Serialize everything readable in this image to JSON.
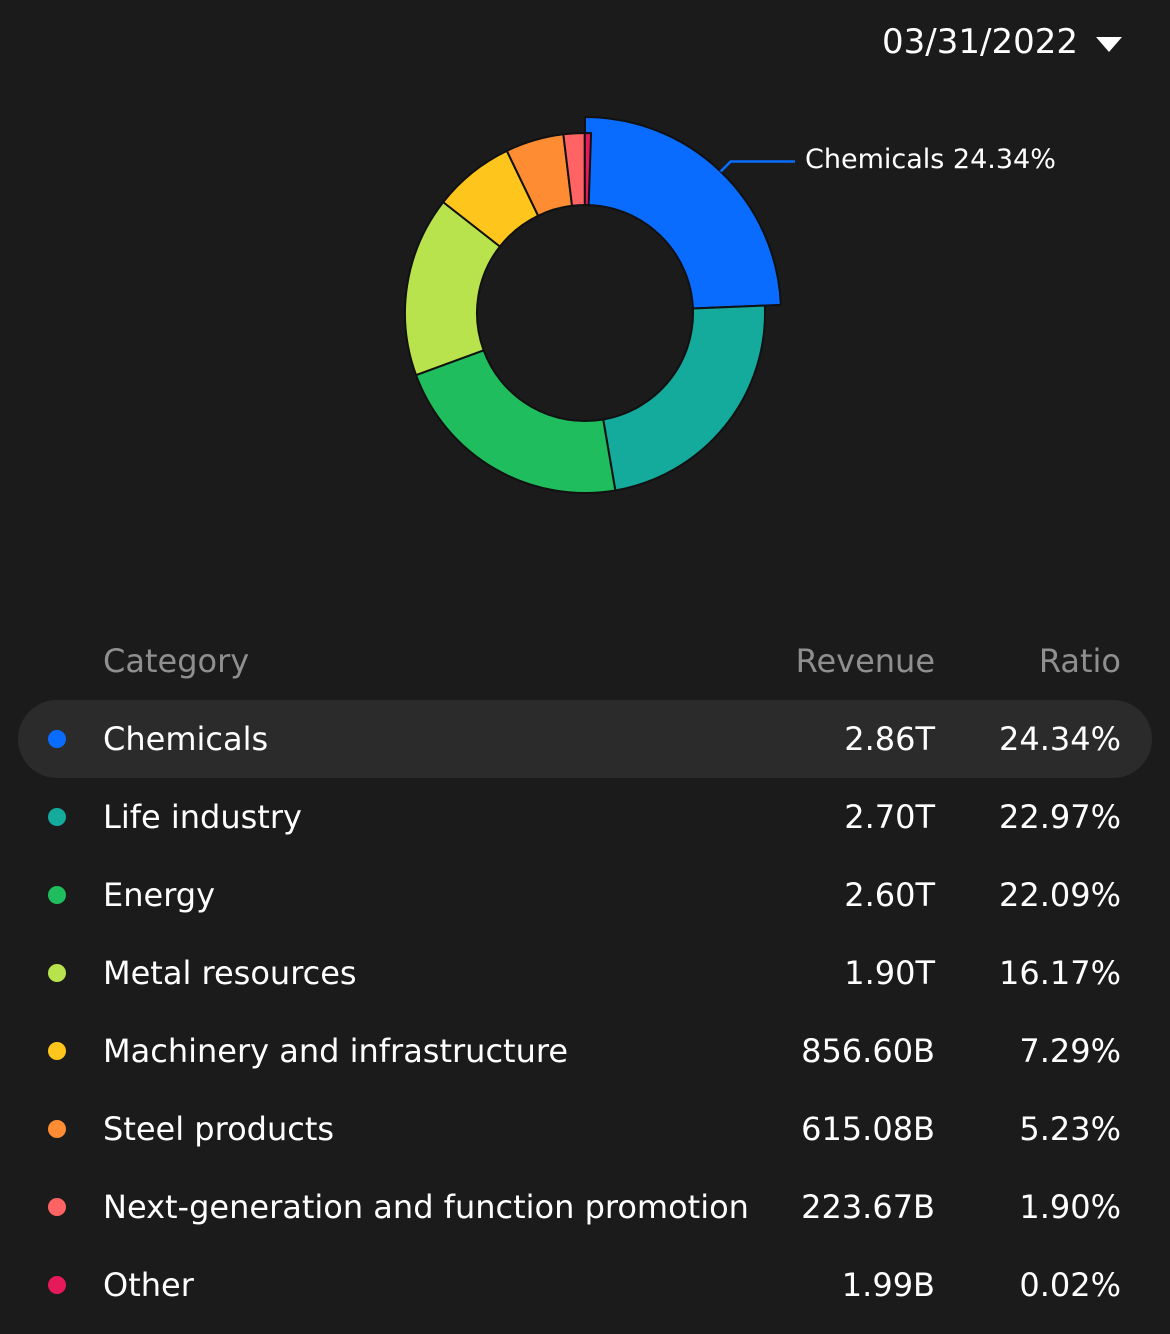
{
  "header": {
    "date": "03/31/2022"
  },
  "callout": {
    "label": "Chemicals 24.34%"
  },
  "table": {
    "headers": {
      "category": "Category",
      "revenue": "Revenue",
      "ratio": "Ratio"
    },
    "selected_index": 0
  },
  "chart_data": {
    "type": "pie",
    "variant": "donut",
    "categories": [
      "Chemicals",
      "Life industry",
      "Energy",
      "Metal resources",
      "Machinery and infrastructure",
      "Steel products",
      "Next-generation and function promotion",
      "Other"
    ],
    "revenue": [
      "2.86T",
      "2.70T",
      "2.60T",
      "1.90T",
      "856.60B",
      "615.08B",
      "223.67B",
      "1.99B"
    ],
    "ratio_labels": [
      "24.34%",
      "22.97%",
      "22.09%",
      "16.17%",
      "7.29%",
      "5.23%",
      "1.90%",
      "0.02%"
    ],
    "values": [
      24.34,
      22.97,
      22.09,
      16.17,
      7.29,
      5.23,
      1.9,
      0.02
    ],
    "colors": [
      "#0a6cff",
      "#14aa9c",
      "#20bd5e",
      "#b8e34c",
      "#fec51c",
      "#fd8c33",
      "#ff6363",
      "#e61a5b"
    ],
    "highlighted": "Chemicals"
  }
}
